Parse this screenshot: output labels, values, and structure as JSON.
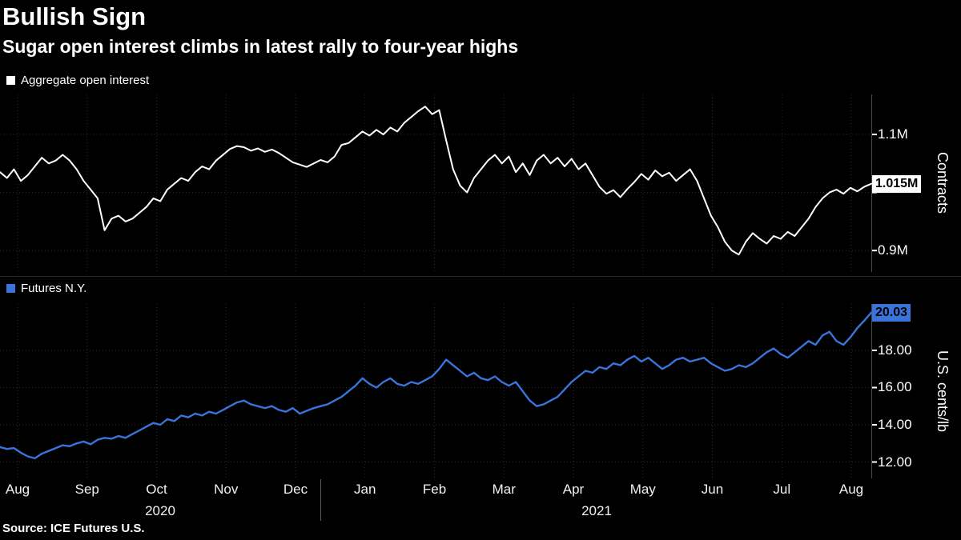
{
  "title": "Bullish Sign",
  "subtitle": "Sugar open interest climbs in latest rally to four-year highs",
  "source": "Source: ICE Futures U.S.",
  "colors": {
    "background": "#000000",
    "open_interest_series": "#ffffff",
    "futures_series": "#3A74DB",
    "grid": "#2d2d2d",
    "axis_spine": "#4a4a4a"
  },
  "x_axis": {
    "months": [
      "Aug",
      "Sep",
      "Oct",
      "Nov",
      "Dec",
      "Jan",
      "Feb",
      "Mar",
      "Apr",
      "May",
      "Jun",
      "Jul",
      "Aug"
    ],
    "years": [
      {
        "label": "2020"
      },
      {
        "label": "2021"
      }
    ]
  },
  "chart_data": [
    {
      "type": "line",
      "name": "Aggregate open interest",
      "unit": "Contracts",
      "color": "#ffffff",
      "ylim": [
        0.863,
        1.169
      ],
      "yticks": [
        {
          "value": 1.1,
          "label": "1.1M"
        },
        {
          "value": 1.0,
          "label": ""
        },
        {
          "value": 0.9,
          "label": "0.9M"
        }
      ],
      "last_value": 1.015,
      "last_value_label": "1.015M",
      "categories": [
        "Aug 2020",
        "Sep",
        "Oct",
        "Nov",
        "Dec",
        "Jan 2021",
        "Feb",
        "Mar",
        "Apr",
        "May",
        "Jun",
        "Jul",
        "Aug 2021"
      ],
      "values": [
        1.035,
        1.025,
        1.04,
        1.02,
        1.03,
        1.045,
        1.06,
        1.05,
        1.055,
        1.065,
        1.055,
        1.04,
        1.02,
        1.005,
        0.99,
        0.935,
        0.955,
        0.96,
        0.95,
        0.955,
        0.965,
        0.975,
        0.99,
        0.985,
        1.005,
        1.015,
        1.025,
        1.02,
        1.035,
        1.045,
        1.04,
        1.055,
        1.065,
        1.075,
        1.08,
        1.078,
        1.072,
        1.076,
        1.07,
        1.074,
        1.068,
        1.06,
        1.052,
        1.048,
        1.044,
        1.05,
        1.056,
        1.052,
        1.062,
        1.082,
        1.085,
        1.095,
        1.105,
        1.098,
        1.108,
        1.1,
        1.112,
        1.105,
        1.12,
        1.13,
        1.14,
        1.148,
        1.135,
        1.142,
        1.09,
        1.04,
        1.012,
        1.0,
        1.025,
        1.04,
        1.055,
        1.065,
        1.05,
        1.062,
        1.035,
        1.05,
        1.03,
        1.055,
        1.065,
        1.05,
        1.06,
        1.045,
        1.058,
        1.04,
        1.05,
        1.03,
        1.01,
        0.998,
        1.004,
        0.992,
        1.006,
        1.018,
        1.032,
        1.022,
        1.038,
        1.028,
        1.034,
        1.02,
        1.03,
        1.04,
        1.02,
        0.99,
        0.96,
        0.94,
        0.915,
        0.9,
        0.893,
        0.915,
        0.93,
        0.92,
        0.912,
        0.925,
        0.92,
        0.932,
        0.925,
        0.94,
        0.955,
        0.975,
        0.99,
        1.0,
        1.005,
        0.998,
        1.008,
        1.002,
        1.01,
        1.015
      ]
    },
    {
      "type": "line",
      "name": "Futures N.Y.",
      "unit": "U.S. cents/lb",
      "color": "#3A74DB",
      "ylim": [
        11.12,
        20.49
      ],
      "yticks": [
        {
          "value": 18,
          "label": "18.00"
        },
        {
          "value": 16,
          "label": "16.00"
        },
        {
          "value": 14,
          "label": "14.00"
        },
        {
          "value": 12,
          "label": "12.00"
        }
      ],
      "last_value": 20.03,
      "last_value_label": "20.03",
      "categories": [
        "Aug 2020",
        "Sep",
        "Oct",
        "Nov",
        "Dec",
        "Jan 2021",
        "Feb",
        "Mar",
        "Apr",
        "May",
        "Jun",
        "Jul",
        "Aug 2021"
      ],
      "values": [
        12.8,
        12.7,
        12.75,
        12.5,
        12.3,
        12.2,
        12.45,
        12.6,
        12.75,
        12.9,
        12.85,
        13.0,
        13.1,
        12.95,
        13.2,
        13.3,
        13.25,
        13.4,
        13.3,
        13.5,
        13.7,
        13.9,
        14.1,
        14.0,
        14.3,
        14.2,
        14.5,
        14.4,
        14.6,
        14.5,
        14.7,
        14.6,
        14.8,
        15.0,
        15.2,
        15.3,
        15.1,
        15.0,
        14.9,
        15.0,
        14.8,
        14.7,
        14.9,
        14.6,
        14.75,
        14.9,
        15.0,
        15.1,
        15.3,
        15.5,
        15.8,
        16.1,
        16.5,
        16.2,
        16.0,
        16.3,
        16.5,
        16.2,
        16.1,
        16.3,
        16.2,
        16.4,
        16.6,
        17.0,
        17.5,
        17.2,
        16.9,
        16.6,
        16.8,
        16.5,
        16.4,
        16.6,
        16.3,
        16.1,
        16.3,
        15.8,
        15.3,
        15.0,
        15.1,
        15.3,
        15.5,
        15.9,
        16.3,
        16.6,
        16.9,
        16.8,
        17.1,
        17.0,
        17.3,
        17.2,
        17.5,
        17.7,
        17.4,
        17.6,
        17.3,
        17.0,
        17.2,
        17.5,
        17.6,
        17.4,
        17.5,
        17.6,
        17.3,
        17.1,
        16.9,
        17.0,
        17.2,
        17.1,
        17.3,
        17.6,
        17.9,
        18.1,
        17.8,
        17.6,
        17.9,
        18.2,
        18.5,
        18.3,
        18.8,
        19.0,
        18.5,
        18.3,
        18.7,
        19.2,
        19.6,
        20.03
      ]
    }
  ]
}
